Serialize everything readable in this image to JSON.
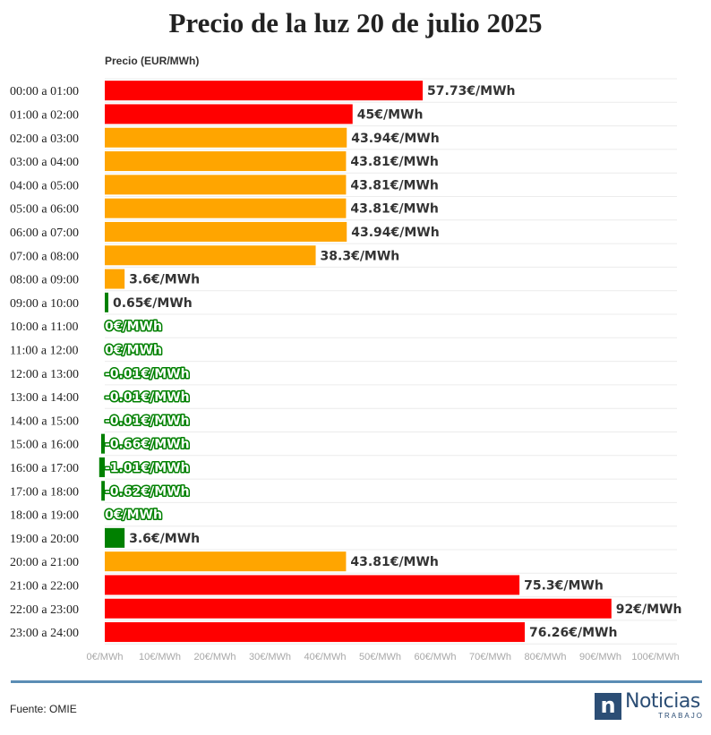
{
  "chart_data": {
    "type": "bar",
    "orientation": "horizontal",
    "title": "Precio de la luz 20 de julio 2025",
    "ylabel": "Precio (EUR/MWh)",
    "xlim": [
      0,
      100
    ],
    "unit_suffix": "€/MWh",
    "x_ticks": [
      "0€/MWh",
      "10€/MWh",
      "20€/MWh",
      "30€/MWh",
      "40€/MWh",
      "50€/MWh",
      "60€/MWh",
      "70€/MWh",
      "80€/MWh",
      "90€/MWh",
      "100€/MWh"
    ],
    "x_tick_values": [
      0,
      10,
      20,
      30,
      40,
      50,
      60,
      70,
      80,
      90,
      100
    ],
    "categories": [
      "00:00 a 01:00",
      "01:00 a 02:00",
      "02:00 a 03:00",
      "03:00 a 04:00",
      "04:00 a 05:00",
      "05:00 a 06:00",
      "06:00 a 07:00",
      "07:00 a 08:00",
      "08:00 a 09:00",
      "09:00 a 10:00",
      "10:00 a 11:00",
      "11:00 a 12:00",
      "12:00 a 13:00",
      "13:00 a 14:00",
      "14:00 a 15:00",
      "15:00 a 16:00",
      "16:00 a 17:00",
      "17:00 a 18:00",
      "18:00 a 19:00",
      "19:00 a 20:00",
      "20:00 a 21:00",
      "21:00 a 22:00",
      "22:00 a 23:00",
      "23:00 a 24:00"
    ],
    "values": [
      57.73,
      45,
      43.94,
      43.81,
      43.81,
      43.81,
      43.94,
      38.3,
      3.6,
      0.65,
      0,
      0,
      -0.01,
      -0.01,
      -0.01,
      -0.66,
      -1.01,
      -0.62,
      0,
      3.6,
      43.81,
      75.3,
      92,
      76.26
    ],
    "value_labels": [
      "57.73€/MWh",
      "45€/MWh",
      "43.94€/MWh",
      "43.81€/MWh",
      "43.81€/MWh",
      "43.81€/MWh",
      "43.94€/MWh",
      "38.3€/MWh",
      "3.6€/MWh",
      "0.65€/MWh",
      "0€/MWh",
      "0€/MWh",
      "-0.01€/MWh",
      "-0.01€/MWh",
      "-0.01€/MWh",
      "-0.66€/MWh",
      "-1.01€/MWh",
      "-0.62€/MWh",
      "0€/MWh",
      "3.6€/MWh",
      "43.81€/MWh",
      "75.3€/MWh",
      "92€/MWh",
      "76.26€/MWh"
    ],
    "bar_colors": [
      "#ff0000",
      "#ff0000",
      "#ffa500",
      "#ffa500",
      "#ffa500",
      "#ffa500",
      "#ffa500",
      "#ffa500",
      "#ffa500",
      "#008000",
      "#008000",
      "#008000",
      "#008000",
      "#008000",
      "#008000",
      "#008000",
      "#008000",
      "#008000",
      "#008000",
      "#008000",
      "#ffa500",
      "#ff0000",
      "#ff0000",
      "#ff0000"
    ],
    "label_styles": [
      "plain",
      "plain",
      "plain",
      "plain",
      "plain",
      "plain",
      "plain",
      "plain",
      "plain",
      "plain",
      "outlined",
      "outlined",
      "outlined",
      "outlined",
      "outlined",
      "outlined",
      "outlined",
      "outlined",
      "outlined",
      "plain",
      "plain",
      "plain",
      "plain",
      "plain"
    ],
    "grid": true
  },
  "footer": {
    "source": "Fuente: OMIE",
    "logo_mark": "n",
    "logo_name": "Noticias",
    "logo_sub": "TRABAJO"
  },
  "colors": {
    "rule": "#5b8db5",
    "brand": "#2c4e75",
    "outlined_label_fill": "#ffffff",
    "outlined_label_stroke": "#008000"
  }
}
